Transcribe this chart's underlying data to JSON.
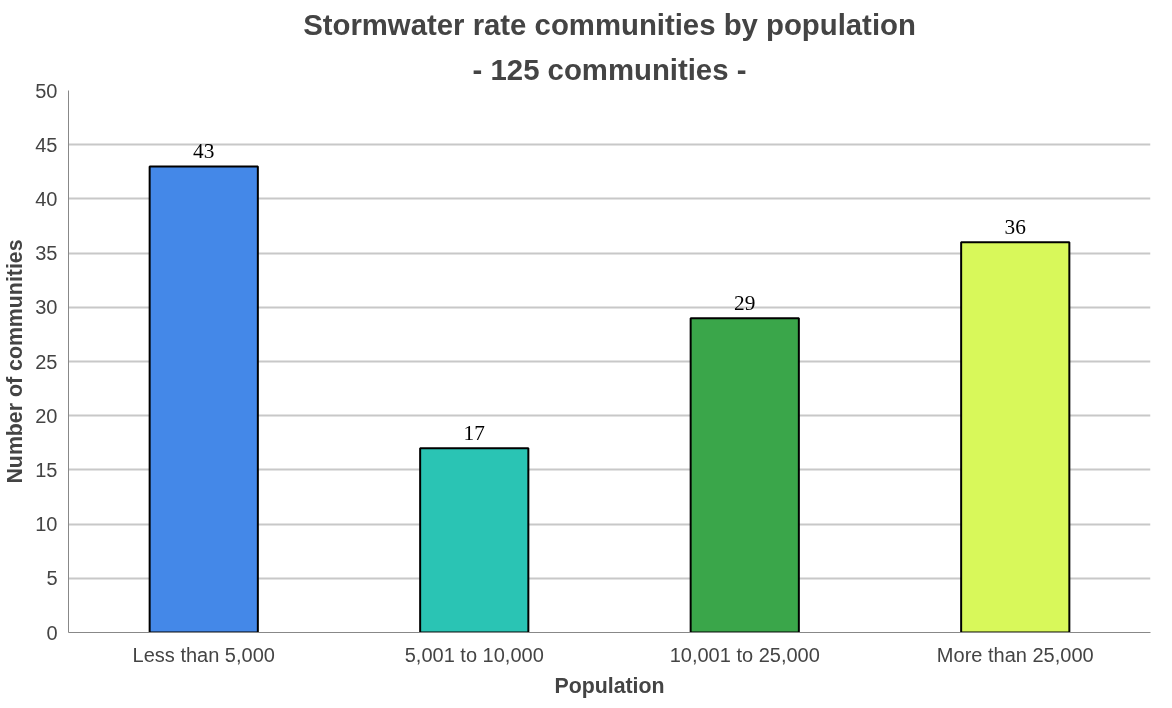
{
  "chart_data": {
    "type": "bar",
    "title": "Stormwater rate communities by population",
    "subtitle": "- 125 communities -",
    "xlabel": "Population",
    "ylabel": "Number of communities",
    "categories": [
      "Less than 5,000",
      "5,001 to 10,000",
      "10,001 to 25,000",
      "More than 25,000"
    ],
    "values": [
      43,
      17,
      29,
      36
    ],
    "colors": [
      "#4488e8",
      "#2ac4b4",
      "#3aa64a",
      "#d8f85a"
    ],
    "ylim": [
      0,
      50
    ],
    "yticks": [
      0,
      5,
      10,
      15,
      20,
      25,
      30,
      35,
      40,
      45,
      50
    ],
    "grid": "y",
    "data_labels": true
  }
}
